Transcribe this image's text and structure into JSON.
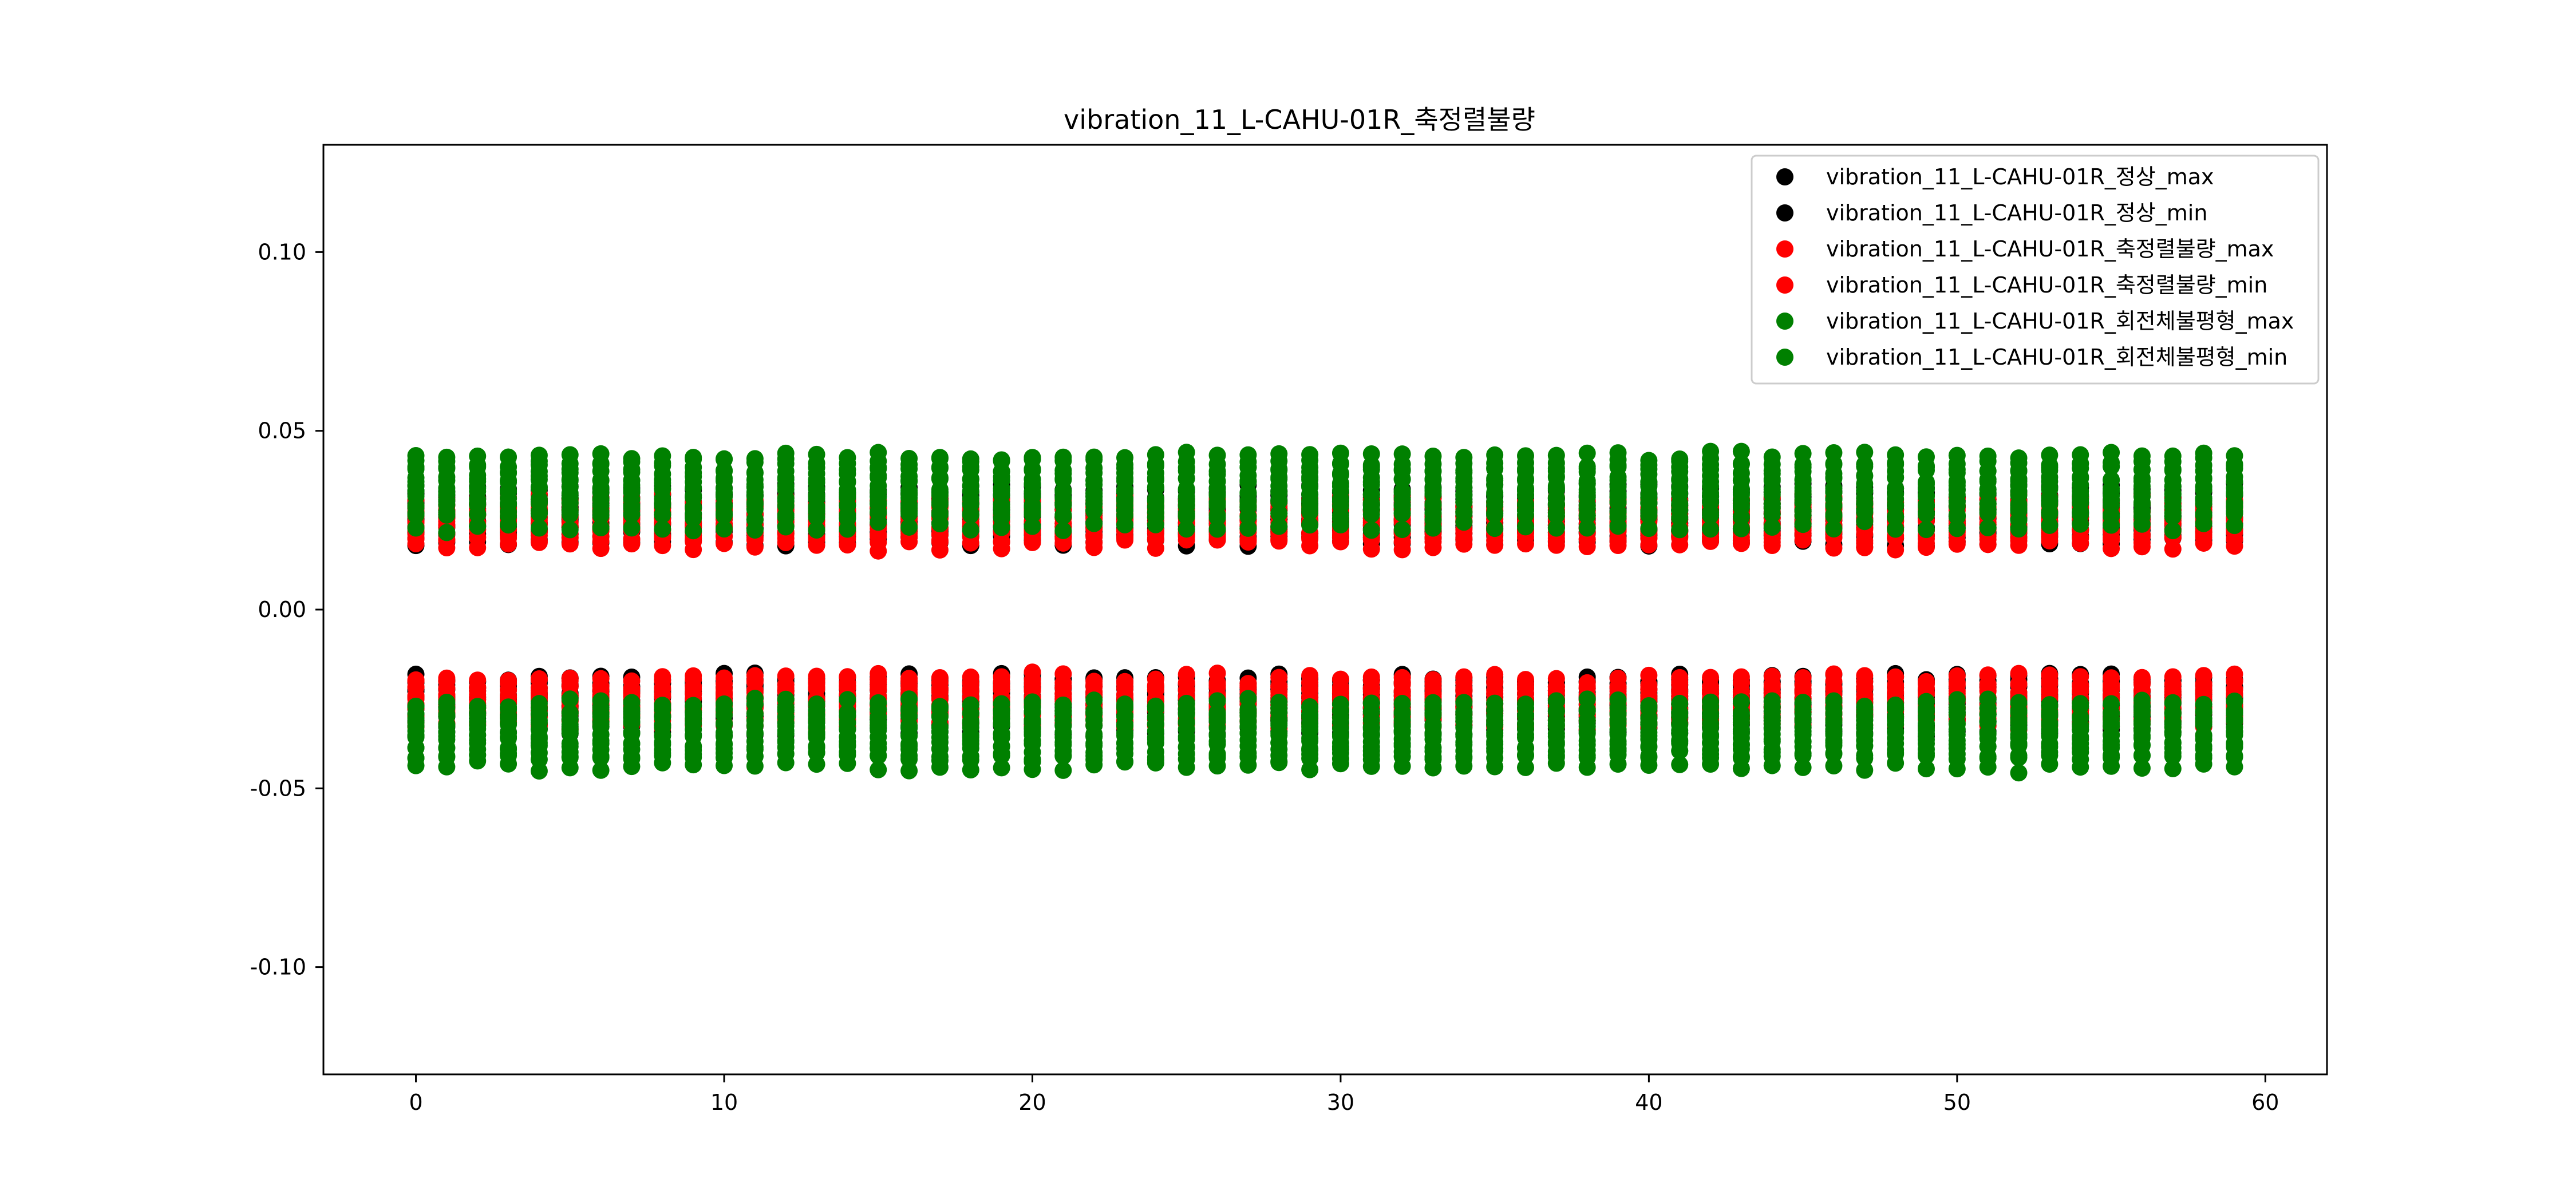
{
  "chart_data": {
    "type": "scatter",
    "title": "vibration_11_L-CAHU-01R_축정렬불량",
    "xlabel": "",
    "ylabel": "",
    "xlim": [
      -3,
      62
    ],
    "ylim": [
      -0.13,
      0.13
    ],
    "x_ticks": [
      0,
      10,
      20,
      30,
      40,
      50,
      60
    ],
    "x_tick_labels": [
      "0",
      "10",
      "20",
      "30",
      "40",
      "50",
      "60"
    ],
    "y_ticks": [
      -0.1,
      -0.05,
      0.0,
      0.05,
      0.1
    ],
    "y_tick_labels": [
      "-0.10",
      "-0.05",
      "0.00",
      "0.05",
      "0.10"
    ],
    "grid": false,
    "legend_position": "top-right",
    "x_count": 60,
    "series": [
      {
        "name": "vibration_11_L-CAHU-01R_정상_max",
        "color": "#000000",
        "bands": [
          [
            0.019,
            0.032
          ],
          [
            0.022,
            0.034
          ]
        ]
      },
      {
        "name": "vibration_11_L-CAHU-01R_정상_min",
        "color": "#000000",
        "bands": [
          [
            -0.034,
            -0.02
          ],
          [
            -0.03,
            -0.019
          ]
        ]
      },
      {
        "name": "vibration_11_L-CAHU-01R_축정렬불량_max",
        "color": "#ff0000",
        "bands": [
          [
            0.018,
            0.03
          ],
          [
            0.02,
            0.031
          ]
        ]
      },
      {
        "name": "vibration_11_L-CAHU-01R_축정렬불량_min",
        "color": "#ff0000",
        "bands": [
          [
            -0.031,
            -0.019
          ],
          [
            -0.032,
            -0.021
          ]
        ]
      },
      {
        "name": "vibration_11_L-CAHU-01R_회전체불평형_max",
        "color": "#008000",
        "bands": [
          [
            0.023,
            0.043
          ],
          [
            0.027,
            0.041
          ]
        ]
      },
      {
        "name": "vibration_11_L-CAHU-01R_회전체불평형_min",
        "color": "#008000",
        "bands": [
          [
            -0.044,
            -0.026
          ],
          [
            -0.041,
            -0.028
          ]
        ]
      }
    ]
  }
}
